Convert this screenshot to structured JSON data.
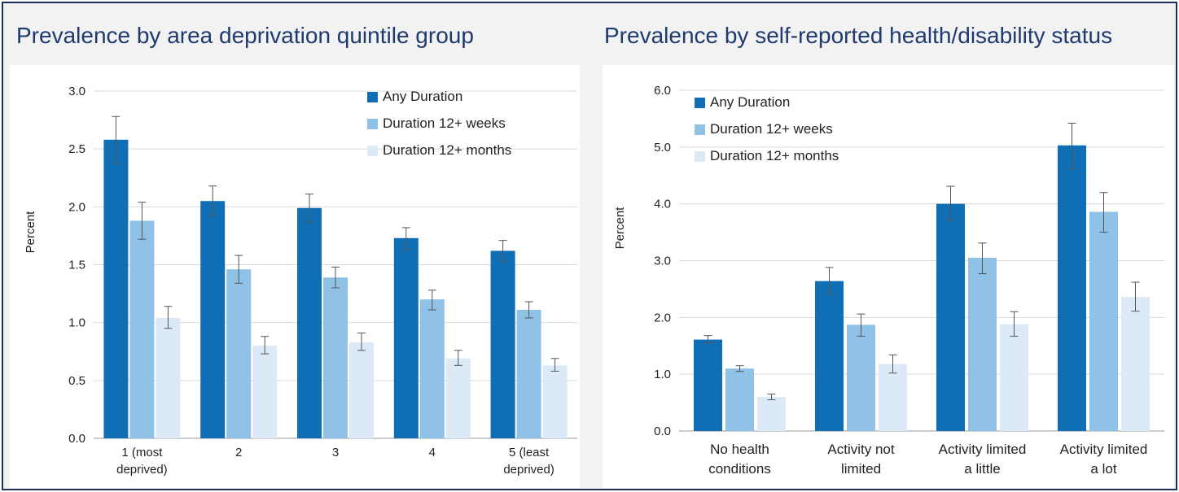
{
  "chart_data": [
    {
      "type": "bar",
      "title": "Prevalence by area deprivation quintile group",
      "ylabel": "Percent",
      "ylim": [
        0,
        3.0
      ],
      "yticks": [
        "0.0",
        "0.5",
        "1.0",
        "1.5",
        "2.0",
        "2.5",
        "3.0"
      ],
      "categories": [
        [
          "1 (most",
          "deprived)"
        ],
        [
          "2"
        ],
        [
          "3"
        ],
        [
          "4"
        ],
        [
          "5 (least",
          "deprived)"
        ]
      ],
      "series": [
        {
          "name": "Any Duration",
          "color": "#0f6eb4",
          "values": [
            2.58,
            2.05,
            1.99,
            1.73,
            1.62
          ],
          "err_low": [
            2.38,
            1.92,
            1.87,
            1.63,
            1.53
          ],
          "err_high": [
            2.78,
            2.18,
            2.11,
            1.82,
            1.71
          ]
        },
        {
          "name": "Duration 12+ weeks",
          "color": "#8fc2e6",
          "values": [
            1.88,
            1.46,
            1.39,
            1.2,
            1.11
          ],
          "err_low": [
            1.72,
            1.34,
            1.3,
            1.11,
            1.04
          ],
          "err_high": [
            2.04,
            1.58,
            1.48,
            1.28,
            1.18
          ]
        },
        {
          "name": "Duration 12+ months",
          "color": "#dce9f6",
          "values": [
            1.04,
            0.8,
            0.83,
            0.69,
            0.63
          ],
          "err_low": [
            0.95,
            0.73,
            0.76,
            0.63,
            0.58
          ],
          "err_high": [
            1.14,
            0.88,
            0.91,
            0.76,
            0.69
          ]
        }
      ],
      "legend": "top-right",
      "grid": true
    },
    {
      "type": "bar",
      "title": "Prevalence by self-reported health/disability status",
      "ylabel": "Percent",
      "ylim": [
        0,
        6.0
      ],
      "yticks": [
        "0.0",
        "1.0",
        "2.0",
        "3.0",
        "4.0",
        "5.0",
        "6.0"
      ],
      "categories": [
        [
          "No health",
          "conditions"
        ],
        [
          "Activity not",
          "limited"
        ],
        [
          "Activity limited",
          "a little"
        ],
        [
          "Activity limited",
          "a lot"
        ]
      ],
      "series": [
        {
          "name": "Any Duration",
          "color": "#0f6eb4",
          "values": [
            1.61,
            2.64,
            4.0,
            5.03
          ],
          "err_low": [
            1.55,
            2.42,
            3.71,
            4.62
          ],
          "err_high": [
            1.68,
            2.88,
            4.31,
            5.42
          ]
        },
        {
          "name": "Duration 12+ weeks",
          "color": "#8fc2e6",
          "values": [
            1.1,
            1.87,
            3.05,
            3.86
          ],
          "err_low": [
            1.05,
            1.67,
            2.77,
            3.5
          ],
          "err_high": [
            1.15,
            2.06,
            3.31,
            4.2
          ]
        },
        {
          "name": "Duration 12+ months",
          "color": "#dce9f6",
          "values": [
            0.6,
            1.18,
            1.88,
            2.36
          ],
          "err_low": [
            0.55,
            1.02,
            1.67,
            2.11
          ],
          "err_high": [
            0.65,
            1.34,
            2.1,
            2.62
          ]
        }
      ],
      "legend": "top-left",
      "grid": true
    }
  ]
}
